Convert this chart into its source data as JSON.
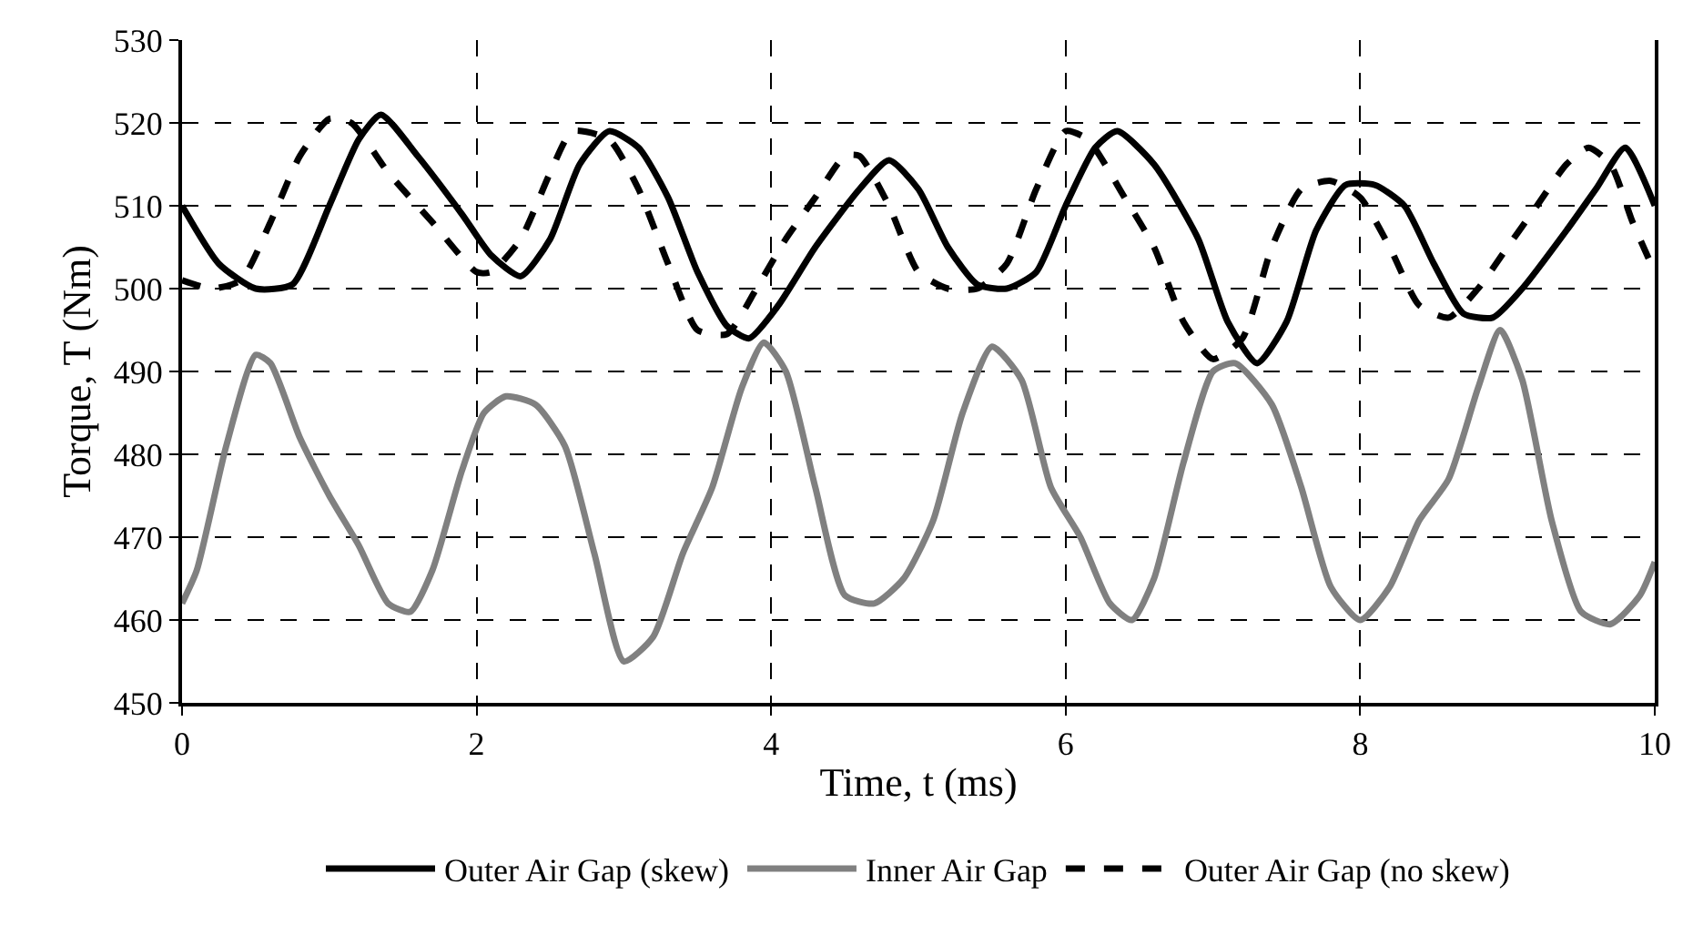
{
  "chart_data": {
    "type": "line",
    "xlabel": "Time, t (ms)",
    "ylabel": "Torque, T (Nm)",
    "xlim": [
      0,
      10
    ],
    "xticks": [
      0,
      2,
      4,
      6,
      8,
      10
    ],
    "ylim": [
      450,
      530
    ],
    "yticks": [
      450,
      460,
      470,
      480,
      490,
      500,
      510,
      520,
      530
    ],
    "grid": true,
    "legend": "bottom",
    "marker": "none",
    "series": [
      {
        "name": "Outer Air Gap (skew)",
        "color": "#000000",
        "line_style": "solid",
        "x": [
          0,
          0.25,
          0.5,
          0.75,
          1.0,
          1.2,
          1.35,
          1.6,
          1.9,
          2.1,
          2.3,
          2.5,
          2.7,
          2.9,
          3.1,
          3.3,
          3.5,
          3.7,
          3.85,
          4.05,
          4.3,
          4.6,
          4.8,
          5.0,
          5.2,
          5.4,
          5.6,
          5.8,
          6.0,
          6.2,
          6.35,
          6.6,
          6.9,
          7.1,
          7.3,
          7.5,
          7.7,
          7.9,
          8.1,
          8.3,
          8.5,
          8.7,
          8.9,
          9.1,
          9.4,
          9.6,
          9.8,
          10
        ],
        "values": [
          510,
          503,
          500,
          500.5,
          510,
          518,
          521,
          516,
          509,
          504,
          501.5,
          506,
          515,
          519,
          517,
          511,
          502,
          495.5,
          494,
          498,
          505,
          512,
          515.5,
          512,
          505,
          500.5,
          500,
          502,
          510,
          517,
          519,
          515,
          506,
          496,
          491,
          496,
          507,
          512.5,
          512.5,
          510,
          503,
          497,
          496.5,
          500,
          507,
          512,
          517,
          510
        ]
      },
      {
        "name": "Inner Air Gap",
        "color": "#808080",
        "line_style": "solid",
        "x": [
          0,
          0.1,
          0.3,
          0.5,
          0.6,
          0.8,
          1.0,
          1.2,
          1.4,
          1.55,
          1.7,
          1.9,
          2.05,
          2.2,
          2.4,
          2.6,
          2.8,
          3.0,
          3.2,
          3.4,
          3.6,
          3.8,
          3.95,
          4.1,
          4.3,
          4.5,
          4.7,
          4.9,
          5.1,
          5.3,
          5.5,
          5.7,
          5.9,
          6.1,
          6.3,
          6.45,
          6.6,
          6.8,
          7.0,
          7.15,
          7.4,
          7.6,
          7.8,
          8.0,
          8.2,
          8.4,
          8.6,
          8.8,
          8.95,
          9.1,
          9.3,
          9.5,
          9.7,
          9.9,
          10
        ],
        "values": [
          462,
          466,
          481,
          492,
          491,
          482,
          475,
          469,
          462,
          461,
          466,
          478,
          485,
          487,
          486,
          481,
          468,
          455,
          458,
          468,
          476,
          488,
          493.5,
          490,
          476,
          463,
          462,
          465,
          472,
          485,
          493,
          489,
          476,
          470,
          462,
          460,
          465,
          479,
          490,
          491,
          486,
          476,
          464,
          460,
          464,
          472,
          477,
          488,
          495,
          489,
          472,
          461,
          459.5,
          463,
          467
        ]
      },
      {
        "name": "Outer Air Gap (no skew)",
        "color": "#000000",
        "line_style": "dashed",
        "x": [
          0,
          0.2,
          0.4,
          0.6,
          0.8,
          1.0,
          1.15,
          1.4,
          1.7,
          2.0,
          2.1,
          2.3,
          2.5,
          2.65,
          2.9,
          3.1,
          3.3,
          3.5,
          3.7,
          3.9,
          4.1,
          4.3,
          4.5,
          4.6,
          4.8,
          5.0,
          5.2,
          5.4,
          5.6,
          5.8,
          6.0,
          6.15,
          6.4,
          6.6,
          6.8,
          7.0,
          7.2,
          7.4,
          7.6,
          7.8,
          8.0,
          8.2,
          8.4,
          8.6,
          8.8,
          9.0,
          9.2,
          9.4,
          9.55,
          9.7,
          9.85,
          10
        ],
        "values": [
          501,
          500,
          501,
          508,
          516,
          520.5,
          520,
          514,
          508,
          502,
          502,
          506,
          514,
          519,
          518,
          512,
          503,
          495,
          494.5,
          500,
          506,
          511,
          516,
          516,
          510,
          502,
          500,
          500,
          503,
          512,
          519,
          518,
          511,
          505,
          496,
          491.5,
          494,
          505,
          512,
          513,
          511,
          505,
          498,
          496.5,
          500,
          505,
          510,
          515,
          517,
          515,
          508,
          502
        ]
      }
    ]
  }
}
